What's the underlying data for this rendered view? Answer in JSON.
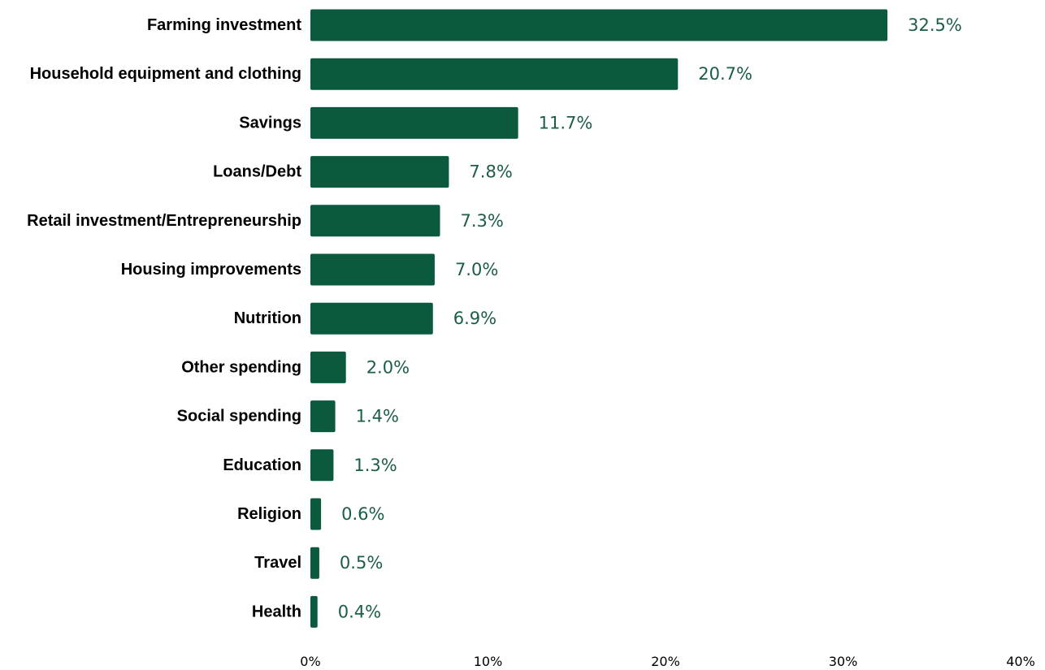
{
  "chart_data": {
    "type": "bar",
    "orientation": "horizontal",
    "title": "",
    "xlabel": "",
    "ylabel": "",
    "categories": [
      "Farming investment",
      "Household equipment and clothing",
      "Savings",
      "Loans/Debt",
      "Retail investment/Entrepreneurship",
      "Housing improvements",
      "Nutrition",
      "Other spending",
      "Social spending",
      "Education",
      "Religion",
      "Travel",
      "Health"
    ],
    "values": [
      32.5,
      20.7,
      11.7,
      7.8,
      7.3,
      7.0,
      6.9,
      2.0,
      1.4,
      1.3,
      0.6,
      0.5,
      0.4
    ],
    "value_labels": [
      "32.5%",
      "20.7%",
      "11.7%",
      "7.8%",
      "7.3%",
      "7.0%",
      "6.9%",
      "2.0%",
      "1.4%",
      "1.3%",
      "0.6%",
      "0.5%",
      "0.4%"
    ],
    "xlim": [
      0,
      40
    ],
    "x_ticks": [
      0,
      10,
      20,
      30,
      40
    ],
    "x_tick_labels": [
      "0%",
      "10%",
      "20%",
      "30%",
      "40%"
    ],
    "grid": false,
    "legend": "none",
    "bar_color": "#0b5a3e",
    "value_label_color": "#1b5e45"
  }
}
